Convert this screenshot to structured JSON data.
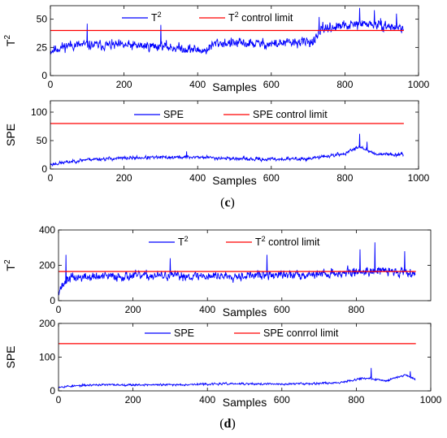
{
  "panel_labels": [
    "c",
    "d"
  ],
  "chart_data": [
    {
      "type": "line",
      "panel": "c",
      "title": "",
      "xlabel": "Samples",
      "ylabel_base": "T",
      "ylabel_sup": "2",
      "xlim": [
        0,
        1000
      ],
      "ylim": [
        0,
        62
      ],
      "xticks": [
        0,
        200,
        400,
        600,
        800,
        1000
      ],
      "yticks": [
        0,
        25,
        50
      ],
      "n_samples": 960,
      "series": [
        {
          "name_base": "T",
          "name_sup": "2",
          "name_rest": "",
          "color": "#0000ff",
          "kind": "stat",
          "baseline": [
            [
              0,
              22
            ],
            [
              50,
              27
            ],
            [
              150,
              27
            ],
            [
              300,
              26
            ],
            [
              420,
              22
            ],
            [
              450,
              29
            ],
            [
              600,
              28
            ],
            [
              700,
              30
            ],
            [
              720,
              31
            ],
            [
              740,
              42
            ],
            [
              800,
              44
            ],
            [
              860,
              46
            ],
            [
              960,
              42
            ]
          ],
          "noise": 10,
          "seed": 11,
          "spikes": [
            [
              100,
              46
            ],
            [
              300,
              45
            ],
            [
              730,
              52
            ],
            [
              840,
              60
            ],
            [
              880,
              58
            ],
            [
              940,
              55
            ]
          ]
        },
        {
          "name_base": "T",
          "name_sup": "2",
          "name_rest": " control limit",
          "color": "#ff0000",
          "kind": "limit",
          "x": [
            0,
            960
          ],
          "y": [
            40,
            40
          ]
        }
      ]
    },
    {
      "type": "line",
      "panel": "c",
      "title": "",
      "xlabel": "Samples",
      "ylabel_base": "SPE",
      "ylabel_sup": "",
      "xlim": [
        0,
        1000
      ],
      "ylim": [
        0,
        120
      ],
      "xticks": [
        0,
        200,
        400,
        600,
        800,
        1000
      ],
      "yticks": [
        0,
        50,
        100
      ],
      "n_samples": 960,
      "series": [
        {
          "name_base": "SPE",
          "name_sup": "",
          "name_rest": "",
          "color": "#0000ff",
          "kind": "stat",
          "baseline": [
            [
              0,
              8
            ],
            [
              100,
              17
            ],
            [
              250,
              20
            ],
            [
              400,
              21
            ],
            [
              550,
              17
            ],
            [
              700,
              18
            ],
            [
              800,
              27
            ],
            [
              840,
              40
            ],
            [
              880,
              27
            ],
            [
              960,
              25
            ]
          ],
          "noise": 7,
          "seed": 23,
          "spikes": [
            [
              370,
              31
            ],
            [
              840,
              62
            ],
            [
              860,
              48
            ]
          ]
        },
        {
          "name_base": "SPE",
          "name_sup": "",
          "name_rest": " control limit",
          "color": "#ff0000",
          "kind": "limit",
          "x": [
            0,
            960
          ],
          "y": [
            80,
            80
          ]
        }
      ]
    },
    {
      "type": "line",
      "panel": "d",
      "title": "",
      "xlabel": "Samples",
      "ylabel_base": "T",
      "ylabel_sup": "2",
      "xlim": [
        0,
        1000
      ],
      "ylim": [
        0,
        400
      ],
      "xticks": [
        0,
        200,
        400,
        600,
        800
      ],
      "yticks": [
        0,
        200,
        400
      ],
      "n_samples": 960,
      "series": [
        {
          "name_base": "T",
          "name_sup": "2",
          "name_rest": "",
          "color": "#0000ff",
          "kind": "stat",
          "baseline": [
            [
              0,
              60
            ],
            [
              30,
              130
            ],
            [
              200,
              140
            ],
            [
              400,
              140
            ],
            [
              600,
              145
            ],
            [
              750,
              155
            ],
            [
              850,
              170
            ],
            [
              960,
              160
            ]
          ],
          "noise": 60,
          "seed": 37,
          "spikes": [
            [
              20,
              260
            ],
            [
              300,
              240
            ],
            [
              560,
              260
            ],
            [
              810,
              290
            ],
            [
              850,
              330
            ],
            [
              930,
              280
            ]
          ]
        },
        {
          "name_base": "T",
          "name_sup": "2",
          "name_rest": " control limit",
          "color": "#ff0000",
          "kind": "limit",
          "x": [
            0,
            960
          ],
          "y": [
            165,
            165
          ]
        }
      ]
    },
    {
      "type": "line",
      "panel": "d",
      "title": "",
      "xlabel": "Samples",
      "ylabel_base": "SPE",
      "ylabel_sup": "",
      "xlim": [
        0,
        1000
      ],
      "ylim": [
        0,
        200
      ],
      "xticks": [
        0,
        200,
        400,
        600,
        800,
        1000
      ],
      "yticks": [
        0,
        100,
        200
      ],
      "n_samples": 960,
      "series": [
        {
          "name_base": "SPE",
          "name_sup": "",
          "name_rest": "",
          "color": "#0000ff",
          "kind": "stat",
          "baseline": [
            [
              0,
              12
            ],
            [
              100,
              18
            ],
            [
              300,
              18
            ],
            [
              450,
              21
            ],
            [
              600,
              20
            ],
            [
              750,
              24
            ],
            [
              820,
              38
            ],
            [
              880,
              30
            ],
            [
              930,
              48
            ],
            [
              960,
              34
            ]
          ],
          "noise": 7,
          "seed": 53,
          "spikes": [
            [
              840,
              68
            ],
            [
              945,
              58
            ]
          ]
        },
        {
          "name_base": "SPE",
          "name_sup": "",
          "name_rest": " conrrol limit",
          "color": "#ff0000",
          "kind": "limit",
          "x": [
            0,
            960
          ],
          "y": [
            140,
            140
          ]
        }
      ]
    }
  ]
}
